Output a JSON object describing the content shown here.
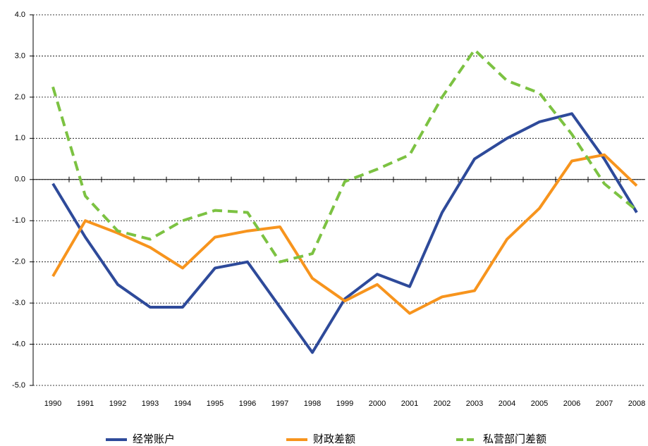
{
  "chart_data": {
    "type": "line",
    "categories": [
      "1990",
      "1991",
      "1992",
      "1993",
      "1994",
      "1995",
      "1996",
      "1997",
      "1998",
      "1999",
      "2000",
      "2001",
      "2002",
      "2003",
      "2004",
      "2005",
      "2006",
      "2007",
      "2008"
    ],
    "series": [
      {
        "name": "经常账户",
        "color": "#2e4a9a",
        "dashed": false,
        "values": [
          -0.1,
          -1.4,
          -2.55,
          -3.1,
          -3.1,
          -2.15,
          -2.0,
          -3.1,
          -4.2,
          -2.9,
          -2.3,
          -2.6,
          -0.8,
          0.5,
          1.0,
          1.4,
          1.6,
          0.5,
          -0.8
        ]
      },
      {
        "name": "财政差额",
        "color": "#f7941d",
        "dashed": false,
        "values": [
          -2.35,
          -1.0,
          -1.3,
          -1.65,
          -2.15,
          -1.4,
          -1.25,
          -1.15,
          -2.4,
          -2.95,
          -2.55,
          -3.25,
          -2.85,
          -2.7,
          -1.45,
          -0.7,
          0.45,
          0.6,
          -0.15
        ]
      },
      {
        "name": "私营部门差额",
        "color": "#7cc242",
        "dashed": true,
        "values": [
          2.25,
          -0.4,
          -1.25,
          -1.45,
          -1.0,
          -0.75,
          -0.8,
          -2.0,
          -1.8,
          -0.05,
          0.25,
          0.6,
          2.0,
          3.15,
          2.4,
          2.1,
          1.1,
          -0.1,
          -0.75
        ]
      }
    ],
    "ylim": [
      -5,
      4
    ],
    "yticks": [
      {
        "value": -5,
        "label": "-5.0"
      },
      {
        "value": -4,
        "label": "-4.0"
      },
      {
        "value": -3,
        "label": "-3.0"
      },
      {
        "value": -2,
        "label": "-2.0"
      },
      {
        "value": -1,
        "label": "-1.0"
      },
      {
        "value": 0,
        "label": "0.0"
      },
      {
        "value": 1,
        "label": "1.0"
      },
      {
        "value": 2,
        "label": "2.0"
      },
      {
        "value": 3,
        "label": "3.0"
      },
      {
        "value": 4,
        "label": "4.0"
      }
    ],
    "grid": true,
    "legend": "bottom"
  }
}
